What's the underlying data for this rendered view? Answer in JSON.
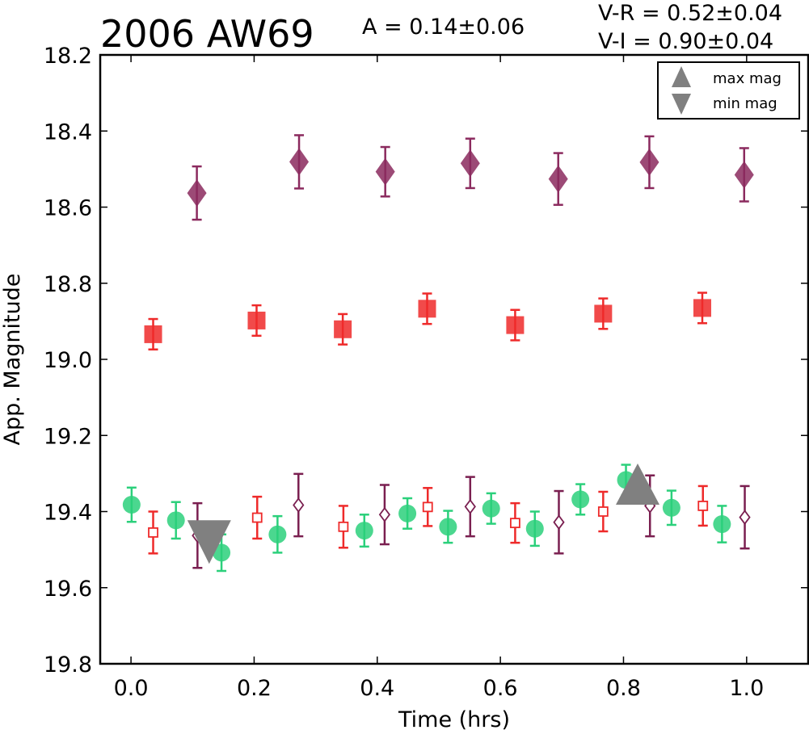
{
  "chart_data": {
    "type": "scatter",
    "title": "2006 AW69",
    "amplitude_label": "A  = 0.14±0.06",
    "color_label_vr": "V-R = 0.52±0.04",
    "color_label_vi": "V-I  = 0.90±0.04",
    "xlabel": "Time (hrs)",
    "ylabel": "App. Magnitude",
    "xlim": [
      -0.05,
      1.1
    ],
    "ylim": [
      19.8,
      18.2
    ],
    "y_inverted": true,
    "x_ticks": [
      "0.0",
      "0.2",
      "0.4",
      "0.6",
      "0.8",
      "1.0"
    ],
    "y_ticks": [
      "18.2",
      "18.4",
      "18.6",
      "18.8",
      "19.0",
      "19.2",
      "19.4",
      "19.6",
      "19.8"
    ],
    "grid": false,
    "legend_position": "top-right",
    "legend": [
      {
        "label": "max mag",
        "marker": "triangle-up",
        "color": "#808080"
      },
      {
        "label": "min mag",
        "marker": "triangle-down",
        "color": "#808080"
      }
    ],
    "series": [
      {
        "marker": "diamond-filled",
        "color": "#8b2a5e",
        "points": [
          {
            "x": 0.107,
            "y": 18.563,
            "err": 0.07
          },
          {
            "x": 0.273,
            "y": 18.481,
            "err": 0.07
          },
          {
            "x": 0.413,
            "y": 18.507,
            "err": 0.065
          },
          {
            "x": 0.551,
            "y": 18.485,
            "err": 0.065
          },
          {
            "x": 0.694,
            "y": 18.526,
            "err": 0.068
          },
          {
            "x": 0.842,
            "y": 18.482,
            "err": 0.068
          },
          {
            "x": 0.996,
            "y": 18.515,
            "err": 0.07
          }
        ]
      },
      {
        "marker": "square-filled",
        "color": "#ee2a2a",
        "points": [
          {
            "x": 0.036,
            "y": 18.934,
            "err": 0.04
          },
          {
            "x": 0.204,
            "y": 18.898,
            "err": 0.04
          },
          {
            "x": 0.344,
            "y": 18.921,
            "err": 0.04
          },
          {
            "x": 0.481,
            "y": 18.867,
            "err": 0.04
          },
          {
            "x": 0.624,
            "y": 18.91,
            "err": 0.04
          },
          {
            "x": 0.767,
            "y": 18.88,
            "err": 0.04
          },
          {
            "x": 0.928,
            "y": 18.865,
            "err": 0.04
          }
        ]
      },
      {
        "marker": "circle-filled",
        "color": "#2bd07b",
        "points": [
          {
            "x": 0.001,
            "y": 19.382,
            "err": 0.045
          },
          {
            "x": 0.073,
            "y": 19.423,
            "err": 0.048
          },
          {
            "x": 0.147,
            "y": 19.508,
            "err": 0.048
          },
          {
            "x": 0.238,
            "y": 19.46,
            "err": 0.048
          },
          {
            "x": 0.379,
            "y": 19.45,
            "err": 0.042
          },
          {
            "x": 0.449,
            "y": 19.405,
            "err": 0.04
          },
          {
            "x": 0.515,
            "y": 19.44,
            "err": 0.042
          },
          {
            "x": 0.585,
            "y": 19.392,
            "err": 0.04
          },
          {
            "x": 0.656,
            "y": 19.445,
            "err": 0.045
          },
          {
            "x": 0.73,
            "y": 19.368,
            "err": 0.04
          },
          {
            "x": 0.804,
            "y": 19.317,
            "err": 0.04
          },
          {
            "x": 0.878,
            "y": 19.39,
            "err": 0.045
          },
          {
            "x": 0.96,
            "y": 19.433,
            "err": 0.048
          }
        ]
      },
      {
        "marker": "square-open",
        "color": "#ee2a2a",
        "points": [
          {
            "x": 0.036,
            "y": 19.455,
            "err": 0.055
          },
          {
            "x": 0.205,
            "y": 19.416,
            "err": 0.055
          },
          {
            "x": 0.345,
            "y": 19.44,
            "err": 0.055
          },
          {
            "x": 0.482,
            "y": 19.388,
            "err": 0.05
          },
          {
            "x": 0.624,
            "y": 19.43,
            "err": 0.052
          },
          {
            "x": 0.767,
            "y": 19.4,
            "err": 0.052
          },
          {
            "x": 0.929,
            "y": 19.385,
            "err": 0.052
          }
        ]
      },
      {
        "marker": "diamond-open",
        "color": "#7a1f50",
        "points": [
          {
            "x": 0.108,
            "y": 19.463,
            "err": 0.085
          },
          {
            "x": 0.272,
            "y": 19.383,
            "err": 0.082
          },
          {
            "x": 0.412,
            "y": 19.408,
            "err": 0.078
          },
          {
            "x": 0.551,
            "y": 19.387,
            "err": 0.078
          },
          {
            "x": 0.695,
            "y": 19.428,
            "err": 0.082
          },
          {
            "x": 0.843,
            "y": 19.385,
            "err": 0.08
          },
          {
            "x": 0.997,
            "y": 19.415,
            "err": 0.082
          }
        ]
      }
    ],
    "markers": [
      {
        "label": "min mag",
        "marker": "triangle-down",
        "x": 0.127,
        "y": 19.48,
        "color": "#808080"
      },
      {
        "label": "max mag",
        "marker": "triangle-up",
        "x": 0.823,
        "y": 19.365,
        "color": "#808080"
      }
    ]
  }
}
